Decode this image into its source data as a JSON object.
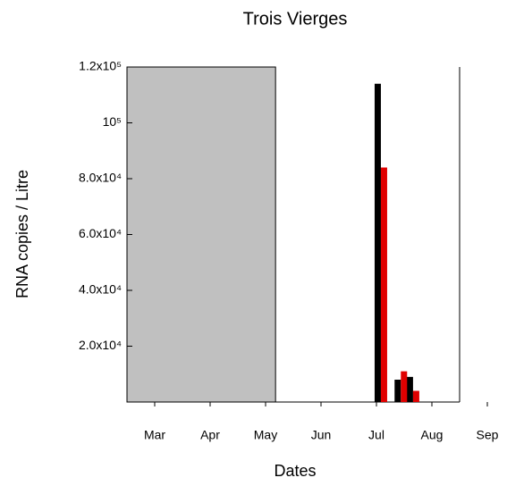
{
  "chart_data": {
    "type": "bar",
    "title": "Trois Vierges",
    "x_label": "Dates",
    "y_label": "RNA copies / Litre",
    "x": [
      7.58,
      7.94,
      8.16
    ],
    "series": [
      {
        "color": "#000000",
        "values": [
          114000,
          8000,
          9000
        ]
      },
      {
        "color": "#e00000",
        "values": [
          84000,
          11000,
          4000
        ]
      }
    ],
    "xlim": [
      3,
      9
    ],
    "xticks": [
      {
        "value": 3.5,
        "label": "Mar"
      },
      {
        "value": 4.5,
        "label": "Apr"
      },
      {
        "value": 5.5,
        "label": "May"
      },
      {
        "value": 6.5,
        "label": "Jun"
      },
      {
        "value": 7.5,
        "label": "Jul"
      },
      {
        "value": 8.5,
        "label": "Aug"
      },
      {
        "value": 9.5,
        "label": "Sep"
      }
    ],
    "ylim": [
      0,
      120000
    ],
    "yticks": [
      {
        "value": 20000,
        "label": "2.0x10⁴"
      },
      {
        "value": 40000,
        "label": "4.0x10⁴"
      },
      {
        "value": 60000,
        "label": "6.0x10⁴"
      },
      {
        "value": 80000,
        "label": "8.0x10⁴"
      },
      {
        "value": 100000,
        "label": "10⁵"
      },
      {
        "value": 120000,
        "label": "1.2x10⁵"
      }
    ],
    "shade": {
      "range": [
        3,
        5.68
      ],
      "color": "#c0c0c0"
    },
    "grid": false
  }
}
